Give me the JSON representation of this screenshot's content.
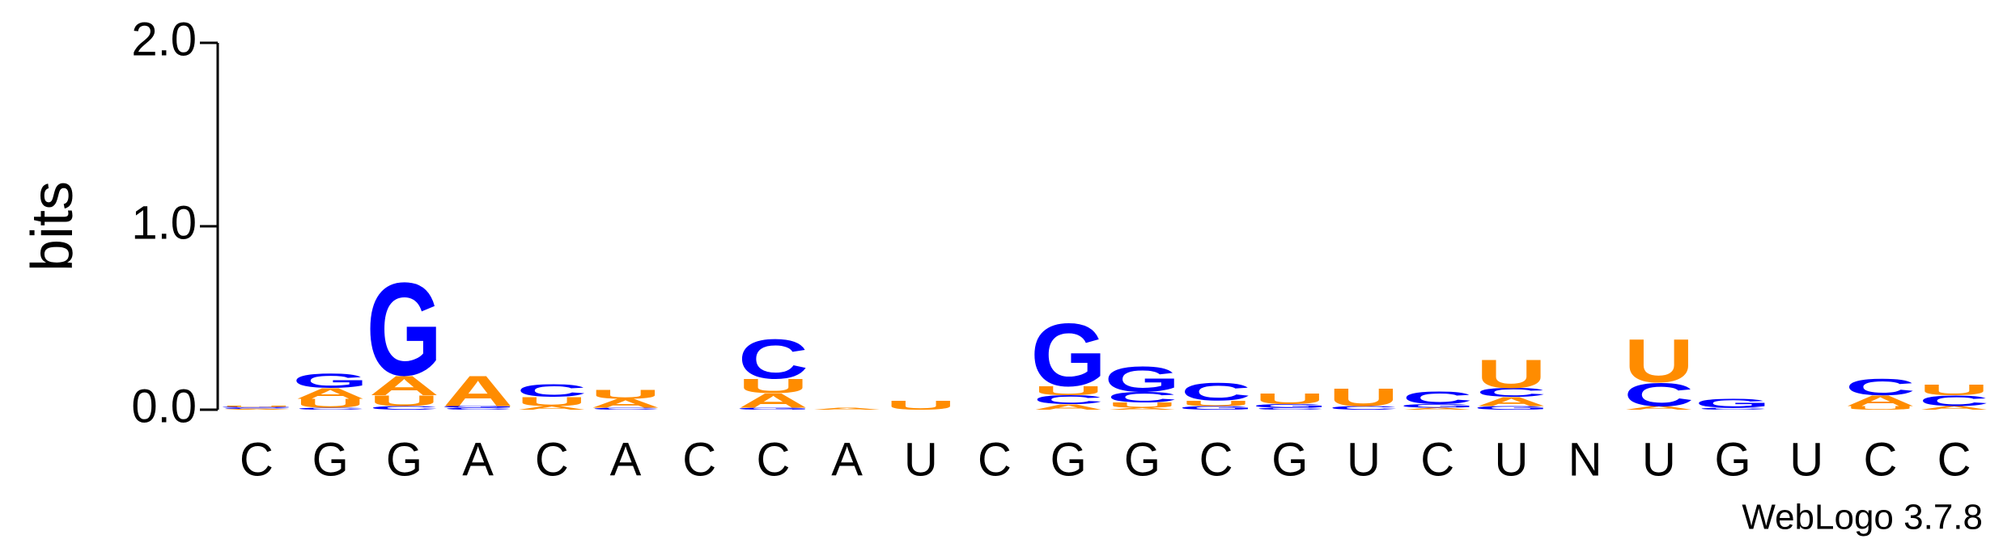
{
  "chart_data": {
    "type": "logo",
    "ylabel": "bits",
    "footer": "WebLogo 3.7.8",
    "ylim": [
      0,
      2
    ],
    "yticks": [
      {
        "value": 0,
        "label": "0.0"
      },
      {
        "value": 1,
        "label": "1.0"
      },
      {
        "value": 2,
        "label": "2.0"
      }
    ],
    "categories": [
      "C",
      "G",
      "G",
      "A",
      "C",
      "A",
      "C",
      "C",
      "A",
      "U",
      "C",
      "G",
      "G",
      "C",
      "G",
      "U",
      "C",
      "U",
      "N",
      "U",
      "G",
      "U",
      "C",
      "C"
    ],
    "series": [
      {
        "name": "A",
        "color": "#ff8c00",
        "values": [
          0.005,
          0.06,
          0.11,
          0.17,
          0.02,
          0.05,
          0,
          0.08,
          0.01,
          0,
          0,
          0.03,
          0.01,
          0,
          0,
          0,
          0.01,
          0.05,
          0,
          0.02,
          0,
          0,
          0.06,
          0.02
        ]
      },
      {
        "name": "C",
        "color": "#0000ff",
        "values": [
          0.005,
          0.01,
          0.02,
          0.01,
          0.07,
          0.01,
          0,
          0.22,
          0,
          0,
          0,
          0.05,
          0.06,
          0.1,
          0.01,
          0.02,
          0.07,
          0.05,
          0,
          0.13,
          0.01,
          0,
          0.09,
          0.06
        ]
      },
      {
        "name": "G",
        "color": "#0000ff",
        "values": [
          0.005,
          0.08,
          0.52,
          0.01,
          0,
          0,
          0,
          0.01,
          0,
          0,
          0,
          0.35,
          0.14,
          0.02,
          0.02,
          0,
          0.02,
          0.02,
          0,
          0,
          0.05,
          0,
          0,
          0
        ]
      },
      {
        "name": "U",
        "color": "#ff8c00",
        "values": [
          0.005,
          0.05,
          0.06,
          0,
          0.05,
          0.05,
          0,
          0.08,
          0,
          0.05,
          0,
          0.05,
          0.03,
          0.03,
          0.06,
          0.1,
          0,
          0.16,
          0,
          0.24,
          0,
          0,
          0.02,
          0.06
        ]
      }
    ]
  }
}
